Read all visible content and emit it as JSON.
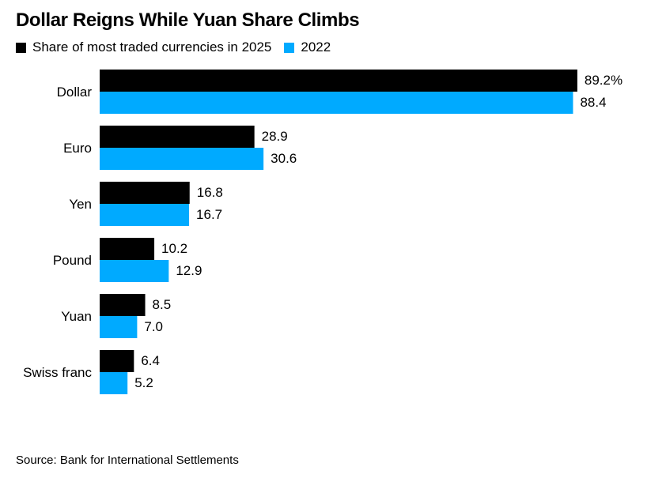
{
  "title": "Dollar Reigns While Yuan Share Climbs",
  "legend": [
    {
      "label": "Share of most traded currencies in 2025",
      "color": "#000000"
    },
    {
      "label": "2022",
      "color": "#00AAFF"
    }
  ],
  "source": "Source: Bank for International Settlements",
  "chart_data": {
    "type": "bar",
    "orientation": "horizontal",
    "title": "Dollar Reigns While Yuan Share Climbs",
    "categories": [
      "Dollar",
      "Euro",
      "Yen",
      "Pound",
      "Yuan",
      "Swiss franc"
    ],
    "series": [
      {
        "name": "Share of most traded currencies in 2025",
        "color": "#000000",
        "values": [
          89.2,
          28.9,
          16.8,
          10.2,
          8.5,
          6.4
        ],
        "labels": [
          "89.2%",
          "28.9",
          "16.8",
          "10.2",
          "8.5",
          "6.4"
        ]
      },
      {
        "name": "2022",
        "color": "#00AAFF",
        "values": [
          88.4,
          30.6,
          16.7,
          12.9,
          7.0,
          5.2
        ],
        "labels": [
          "88.4",
          "30.6",
          "16.7",
          "12.9",
          "7.0",
          "5.2"
        ]
      }
    ],
    "xlim": [
      0,
      100
    ],
    "grid": false,
    "legend_position": "top-left"
  }
}
